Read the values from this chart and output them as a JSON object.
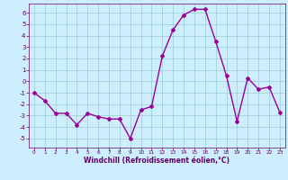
{
  "x": [
    0,
    1,
    2,
    3,
    4,
    5,
    6,
    7,
    8,
    9,
    10,
    11,
    12,
    13,
    14,
    15,
    16,
    17,
    18,
    19,
    20,
    21,
    22,
    23
  ],
  "y": [
    -1.0,
    -1.7,
    -2.8,
    -2.8,
    -3.8,
    -2.8,
    -3.1,
    -3.3,
    -3.3,
    -5.0,
    -2.5,
    -2.2,
    2.2,
    4.5,
    5.8,
    6.3,
    6.3,
    3.5,
    0.5,
    -3.5,
    0.3,
    -0.7,
    -0.5,
    -2.7
  ],
  "line_color": "#990099",
  "marker": "D",
  "marker_size": 2.0,
  "linewidth": 1.0,
  "bg_color": "#cceeff",
  "grid_color": "#99cccc",
  "xlabel": "Windchill (Refroidissement éolien,°C)",
  "xlabel_color": "#660066",
  "axis_color": "#660066",
  "tick_color": "#660066",
  "ylim": [
    -5.8,
    6.8
  ],
  "xlim": [
    -0.5,
    23.5
  ],
  "yticks": [
    -5,
    -4,
    -3,
    -2,
    -1,
    0,
    1,
    2,
    3,
    4,
    5,
    6
  ],
  "xticks": [
    0,
    1,
    2,
    3,
    4,
    5,
    6,
    7,
    8,
    9,
    10,
    11,
    12,
    13,
    14,
    15,
    16,
    17,
    18,
    19,
    20,
    21,
    22,
    23
  ],
  "xlabel_fontsize": 5.5,
  "xtick_fontsize": 4.2,
  "ytick_fontsize": 5.0
}
